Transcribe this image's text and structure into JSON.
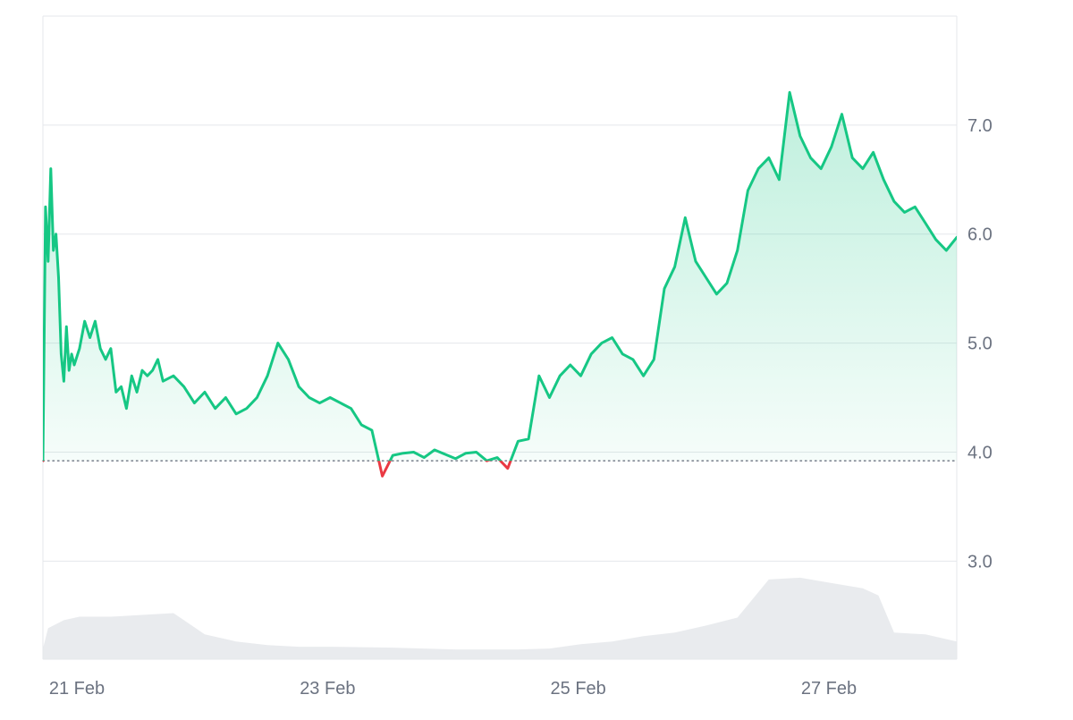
{
  "chart_data": {
    "type": "area",
    "title": "",
    "xlabel": "",
    "ylabel": "",
    "baseline": 3.92,
    "ylim": [
      2.1,
      8.0
    ],
    "xlim": [
      "2025-02-20T17:00",
      "2025-02-28T00:00"
    ],
    "y_ticks": [
      {
        "value": 3.0,
        "label": "3.0"
      },
      {
        "value": 4.0,
        "label": "4.0"
      },
      {
        "value": 5.0,
        "label": "5.0"
      },
      {
        "value": 6.0,
        "label": "6.0"
      },
      {
        "value": 7.0,
        "label": "7.0"
      }
    ],
    "x_ticks": [
      {
        "value": "2025-02-21T00:00",
        "label": "21 Feb"
      },
      {
        "value": "2025-02-23T00:00",
        "label": "23 Feb"
      },
      {
        "value": "2025-02-25T00:00",
        "label": "25 Feb"
      },
      {
        "value": "2025-02-27T00:00",
        "label": "27 Feb"
      }
    ],
    "colors": {
      "above_baseline": "#16c784",
      "below_baseline": "#ea3943",
      "area_fill": "#16c784",
      "volume": "#e5e7eb",
      "grid": "#e5e7eb",
      "baseline": "#6b7280"
    },
    "grid": true,
    "legend": "none",
    "series": [
      {
        "x": [
          "2025-02-20T17:00",
          "2025-02-20T17:30",
          "2025-02-20T18:00",
          "2025-02-20T18:30",
          "2025-02-20T19:00",
          "2025-02-20T19:30",
          "2025-02-20T20:00",
          "2025-02-20T20:30",
          "2025-02-20T21:00",
          "2025-02-20T21:30",
          "2025-02-20T22:00",
          "2025-02-20T22:30",
          "2025-02-20T23:00",
          "2025-02-21T00:00",
          "2025-02-21T01:00",
          "2025-02-21T02:00",
          "2025-02-21T03:00",
          "2025-02-21T04:00",
          "2025-02-21T05:00",
          "2025-02-21T06:00",
          "2025-02-21T07:00",
          "2025-02-21T08:00",
          "2025-02-21T09:00",
          "2025-02-21T10:00",
          "2025-02-21T11:00",
          "2025-02-21T12:00",
          "2025-02-21T13:00",
          "2025-02-21T14:00",
          "2025-02-21T15:00",
          "2025-02-21T16:00",
          "2025-02-21T18:00",
          "2025-02-21T20:00",
          "2025-02-21T22:00",
          "2025-02-22T00:00",
          "2025-02-22T02:00",
          "2025-02-22T04:00",
          "2025-02-22T06:00",
          "2025-02-22T08:00",
          "2025-02-22T10:00",
          "2025-02-22T12:00",
          "2025-02-22T14:00",
          "2025-02-22T16:00",
          "2025-02-22T18:00",
          "2025-02-22T20:00",
          "2025-02-22T22:00",
          "2025-02-23T00:00",
          "2025-02-23T02:00",
          "2025-02-23T04:00",
          "2025-02-23T06:00",
          "2025-02-23T08:00",
          "2025-02-23T10:00",
          "2025-02-23T12:00",
          "2025-02-23T14:00",
          "2025-02-23T16:00",
          "2025-02-23T18:00",
          "2025-02-23T20:00",
          "2025-02-23T22:00",
          "2025-02-24T00:00",
          "2025-02-24T02:00",
          "2025-02-24T04:00",
          "2025-02-24T06:00",
          "2025-02-24T08:00",
          "2025-02-24T10:00",
          "2025-02-24T12:00",
          "2025-02-24T14:00",
          "2025-02-24T16:00",
          "2025-02-24T18:00",
          "2025-02-24T20:00",
          "2025-02-24T22:00",
          "2025-02-25T00:00",
          "2025-02-25T02:00",
          "2025-02-25T04:00",
          "2025-02-25T06:00",
          "2025-02-25T08:00",
          "2025-02-25T10:00",
          "2025-02-25T12:00",
          "2025-02-25T14:00",
          "2025-02-25T16:00",
          "2025-02-25T18:00",
          "2025-02-25T20:00",
          "2025-02-25T22:00",
          "2025-02-26T00:00",
          "2025-02-26T02:00",
          "2025-02-26T04:00",
          "2025-02-26T06:00",
          "2025-02-26T08:00",
          "2025-02-26T10:00",
          "2025-02-26T12:00",
          "2025-02-26T14:00",
          "2025-02-26T16:00",
          "2025-02-26T18:00",
          "2025-02-26T20:00",
          "2025-02-26T22:00",
          "2025-02-27T00:00",
          "2025-02-27T02:00",
          "2025-02-27T04:00",
          "2025-02-27T06:00",
          "2025-02-27T08:00",
          "2025-02-27T10:00",
          "2025-02-27T12:00",
          "2025-02-27T14:00",
          "2025-02-27T16:00",
          "2025-02-27T18:00",
          "2025-02-27T20:00",
          "2025-02-27T22:00",
          "2025-02-28T00:00"
        ],
        "values": [
          3.92,
          6.25,
          5.75,
          6.6,
          5.85,
          6.0,
          5.6,
          4.9,
          4.65,
          5.15,
          4.75,
          4.9,
          4.8,
          4.95,
          5.2,
          5.05,
          5.2,
          4.95,
          4.85,
          4.95,
          4.55,
          4.6,
          4.4,
          4.7,
          4.55,
          4.75,
          4.7,
          4.75,
          4.85,
          4.65,
          4.7,
          4.6,
          4.45,
          4.55,
          4.4,
          4.5,
          4.35,
          4.4,
          4.5,
          4.7,
          5.0,
          4.85,
          4.6,
          4.5,
          4.45,
          4.5,
          4.45,
          4.4,
          4.25,
          4.2,
          3.78,
          3.97,
          3.99,
          4.0,
          3.95,
          4.02,
          3.98,
          3.94,
          3.99,
          4.0,
          3.92,
          3.95,
          3.85,
          4.1,
          4.12,
          4.7,
          4.5,
          4.7,
          4.8,
          4.7,
          4.9,
          5.0,
          5.05,
          4.9,
          4.85,
          4.7,
          4.85,
          5.5,
          5.7,
          6.15,
          5.75,
          5.6,
          5.45,
          5.55,
          5.85,
          6.4,
          6.6,
          6.7,
          6.5,
          7.3,
          6.9,
          6.7,
          6.6,
          6.8,
          7.1,
          6.7,
          6.6,
          6.75,
          6.5,
          6.3,
          6.2,
          6.25,
          6.1,
          5.95,
          5.85,
          5.97
        ]
      }
    ],
    "volume": {
      "x": [
        "2025-02-20T17:00",
        "2025-02-20T18:00",
        "2025-02-20T21:00",
        "2025-02-21T00:00",
        "2025-02-21T06:00",
        "2025-02-21T12:00",
        "2025-02-21T18:00",
        "2025-02-21T20:00",
        "2025-02-22T00:00",
        "2025-02-22T06:00",
        "2025-02-22T12:00",
        "2025-02-22T18:00",
        "2025-02-23T00:00",
        "2025-02-23T12:00",
        "2025-02-24T00:00",
        "2025-02-24T12:00",
        "2025-02-24T18:00",
        "2025-02-25T00:00",
        "2025-02-25T06:00",
        "2025-02-25T12:00",
        "2025-02-25T18:00",
        "2025-02-26T00:00",
        "2025-02-26T06:00",
        "2025-02-26T12:00",
        "2025-02-26T18:00",
        "2025-02-27T00:00",
        "2025-02-27T06:00",
        "2025-02-27T09:00",
        "2025-02-27T12:00",
        "2025-02-27T18:00",
        "2025-02-28T00:00"
      ],
      "values": [
        0.12,
        0.35,
        0.44,
        0.48,
        0.48,
        0.5,
        0.52,
        0.44,
        0.28,
        0.2,
        0.16,
        0.14,
        0.14,
        0.13,
        0.11,
        0.11,
        0.12,
        0.17,
        0.2,
        0.26,
        0.3,
        0.38,
        0.47,
        0.9,
        0.92,
        0.86,
        0.8,
        0.72,
        0.3,
        0.28,
        0.2
      ]
    }
  }
}
